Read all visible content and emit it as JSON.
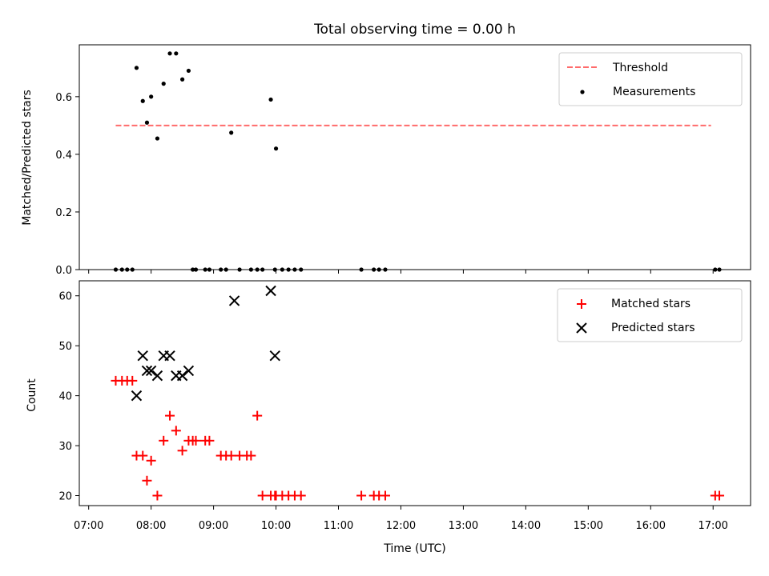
{
  "chart_data": [
    {
      "type": "scatter",
      "title": "Total observing time = 0.00 h",
      "xlabel": "",
      "ylabel": "Matched/Predicted stars",
      "xlim": [
        "07:00",
        "17:30"
      ],
      "ylim": [
        0,
        0.78
      ],
      "yticks": [
        "0.0",
        "0.2",
        "0.4",
        "0.6"
      ],
      "grid": false,
      "legend_position": "top-right",
      "series": [
        {
          "name": "Threshold",
          "kind": "dashed-line",
          "color": "#ff6b6b",
          "x": [
            "07:26",
            "16:58"
          ],
          "y": [
            0.5,
            0.5
          ]
        },
        {
          "name": "Measurements",
          "kind": "dots",
          "color": "#000000",
          "x": [
            "07:26",
            "07:32",
            "07:37",
            "07:42",
            "07:46",
            "07:52",
            "07:56",
            "08:00",
            "08:06",
            "08:12",
            "08:18",
            "08:24",
            "08:30",
            "08:36",
            "08:40",
            "08:43",
            "08:52",
            "08:56",
            "09:07",
            "09:12",
            "09:17",
            "09:25",
            "09:36",
            "09:42",
            "09:47",
            "09:55",
            "09:59",
            "10:00",
            "10:06",
            "10:12",
            "10:18",
            "10:24",
            "11:22",
            "11:34",
            "11:39",
            "11:45",
            "17:02",
            "17:06"
          ],
          "y": [
            0.0,
            0.0,
            0.0,
            0.0,
            0.7,
            0.585,
            0.51,
            0.6,
            0.455,
            0.645,
            0.75,
            0.75,
            0.66,
            0.69,
            0.0,
            0.0,
            0.0,
            0.0,
            0.0,
            0.0,
            0.475,
            0.0,
            0.0,
            0.0,
            0.0,
            0.59,
            0.0,
            0.42,
            0.0,
            0.0,
            0.0,
            0.0,
            0.0,
            0.0,
            0.0,
            0.0,
            0.0,
            0.0
          ]
        }
      ]
    },
    {
      "type": "scatter",
      "title": "",
      "xlabel": "Time (UTC)",
      "ylabel": "Count",
      "xlim": [
        "07:00",
        "17:30"
      ],
      "ylim": [
        18,
        63
      ],
      "xticks": [
        "07:00",
        "08:00",
        "09:00",
        "10:00",
        "11:00",
        "12:00",
        "13:00",
        "14:00",
        "15:00",
        "16:00",
        "17:00"
      ],
      "yticks": [
        "20",
        "30",
        "40",
        "50",
        "60"
      ],
      "grid": false,
      "legend_position": "top-right",
      "series": [
        {
          "name": "Matched stars",
          "kind": "plus",
          "color": "#ff0000",
          "x": [
            "07:26",
            "07:32",
            "07:37",
            "07:42",
            "07:46",
            "07:52",
            "07:56",
            "08:00",
            "08:06",
            "08:12",
            "08:18",
            "08:24",
            "08:30",
            "08:36",
            "08:40",
            "08:43",
            "08:52",
            "08:56",
            "09:07",
            "09:12",
            "09:17",
            "09:25",
            "09:32",
            "09:36",
            "09:42",
            "09:47",
            "09:55",
            "09:59",
            "10:00",
            "10:06",
            "10:12",
            "10:18",
            "10:24",
            "11:22",
            "11:34",
            "11:39",
            "11:45",
            "17:02",
            "17:06"
          ],
          "y": [
            43,
            43,
            43,
            43,
            28,
            28,
            23,
            27,
            20,
            31,
            36,
            33,
            29,
            31,
            31,
            31,
            31,
            31,
            28,
            28,
            28,
            28,
            28,
            28,
            36,
            20,
            20,
            20,
            20,
            20,
            20,
            20,
            20,
            20,
            20,
            20,
            20,
            20,
            20
          ]
        },
        {
          "name": "Predicted stars",
          "kind": "x",
          "color": "#000000",
          "x": [
            "07:46",
            "07:52",
            "07:56",
            "08:00",
            "08:06",
            "08:12",
            "08:18",
            "08:24",
            "08:30",
            "08:36",
            "09:20",
            "09:55",
            "09:59"
          ],
          "y": [
            40,
            48,
            45,
            45,
            44,
            48,
            48,
            44,
            44,
            45,
            59,
            61,
            48
          ]
        }
      ]
    }
  ]
}
